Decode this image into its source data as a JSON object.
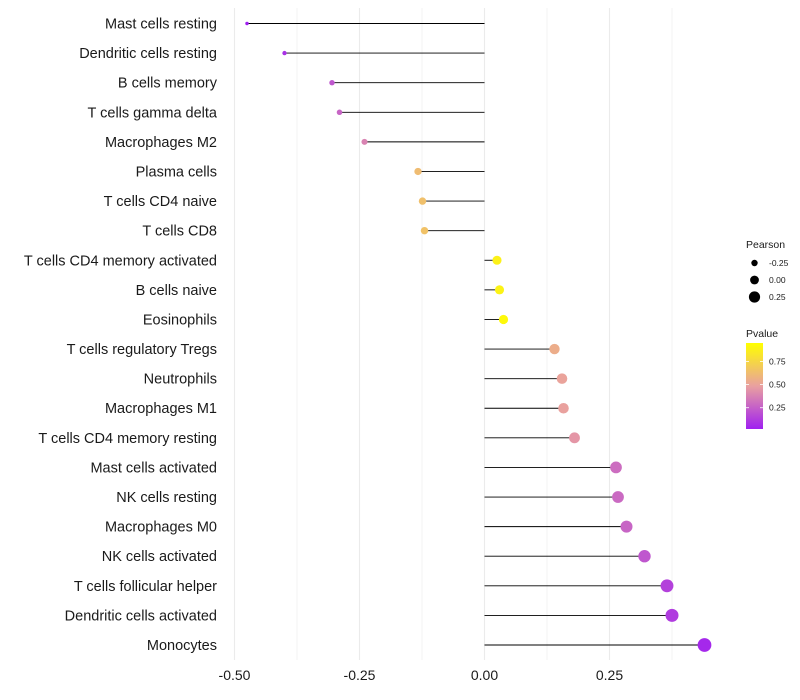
{
  "chart_data": {
    "type": "lollipop",
    "title": "",
    "xlabel": "",
    "ylabel": "",
    "xlim": [
      -0.5,
      0.45
    ],
    "x_ticks": [
      -0.5,
      -0.25,
      0.0,
      0.25
    ],
    "x_tick_labels": [
      "-0.50",
      "-0.25",
      "0.00",
      "0.25"
    ],
    "grid": true,
    "categories": [
      "Mast cells resting",
      "Dendritic cells resting",
      "B cells memory",
      "T cells gamma delta",
      "Macrophages M2",
      "Plasma cells",
      "T cells CD4 naive",
      "T cells CD8",
      "T cells CD4 memory activated",
      "B cells naive",
      "Eosinophils",
      "T cells regulatory  Tregs ",
      "Neutrophils",
      "Macrophages M1",
      "T cells CD4 memory resting",
      "Mast cells activated",
      "NK cells resting",
      "Macrophages M0",
      "NK cells activated",
      "T cells follicular helper",
      "Dendritic cells activated",
      "Monocytes"
    ],
    "pearson": [
      -0.475,
      -0.4,
      -0.305,
      -0.29,
      -0.24,
      -0.133,
      -0.124,
      -0.12,
      0.025,
      0.03,
      0.038,
      0.14,
      0.155,
      0.158,
      0.18,
      0.263,
      0.267,
      0.284,
      0.32,
      0.365,
      0.375,
      0.44
    ],
    "pvalue": [
      0.02,
      0.08,
      0.22,
      0.27,
      0.38,
      0.62,
      0.64,
      0.65,
      0.88,
      0.89,
      0.92,
      0.55,
      0.5,
      0.49,
      0.45,
      0.3,
      0.29,
      0.27,
      0.22,
      0.14,
      0.12,
      0.05
    ],
    "legend_size": {
      "title": "Pearson",
      "values": [
        -0.25,
        0.0,
        0.25
      ],
      "labels": [
        "-0.25",
        "0.00",
        "0.25"
      ]
    },
    "legend_color": {
      "title": "Pvalue",
      "range": [
        0.02,
        0.95
      ],
      "ticks": [
        0.25,
        0.5,
        0.75
      ],
      "labels": [
        "0.25",
        "0.50",
        "0.75"
      ],
      "low_color": "#a020f0",
      "mid_color": "#e9a0a0",
      "high_color": "#ffff00"
    },
    "stem_color": "#000000",
    "grid_color": "#ebebeb"
  }
}
